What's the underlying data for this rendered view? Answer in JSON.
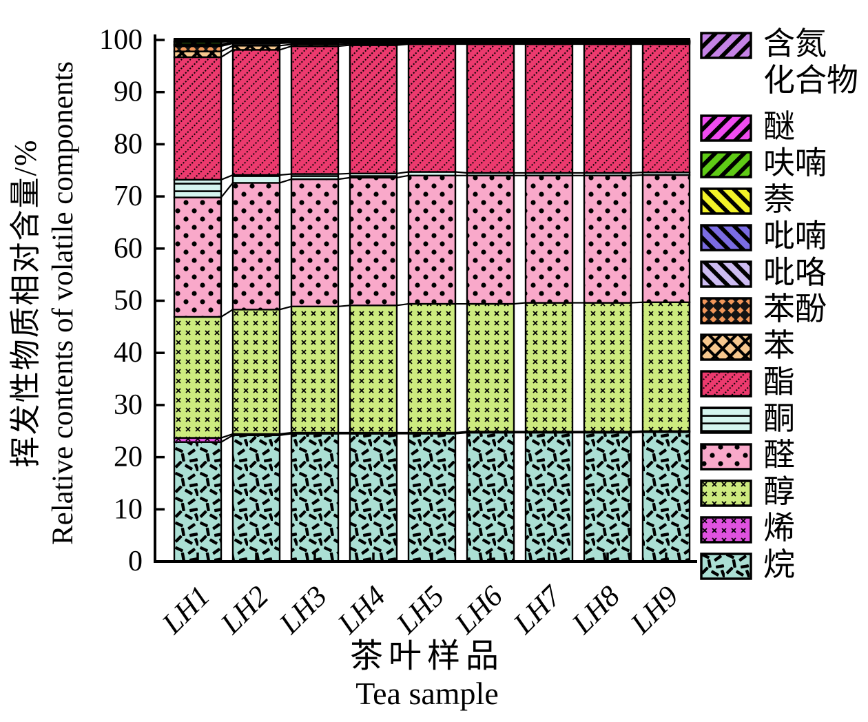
{
  "chart_data": {
    "type": "bar",
    "stacked": true,
    "title": "",
    "xlabel_zh": "茶叶样品",
    "xlabel_en": "Tea sample",
    "ylabel_zh": "挥发性物质相对含量/%",
    "ylabel_en": "Relative contents of volatile components",
    "ylim": [
      0,
      100
    ],
    "yticks": [
      0,
      10,
      20,
      30,
      40,
      50,
      60,
      70,
      80,
      90,
      100
    ],
    "grid": false,
    "legend_position": "right-outside",
    "categories": [
      "LH1",
      "LH2",
      "LH3",
      "LH4",
      "LH5",
      "LH6",
      "LH7",
      "LH8",
      "LH9"
    ],
    "series": [
      {
        "id": "alkane",
        "label": "烷",
        "color": "#abdfd4",
        "pattern": "random-dashes",
        "values": [
          22.9,
          24.2,
          24.5,
          24.5,
          24.5,
          24.7,
          24.7,
          24.7,
          24.8
        ]
      },
      {
        "id": "alkene",
        "label": "烯",
        "color": "#e052e0",
        "pattern": "tiny-x-grid",
        "values": [
          0.8,
          0.25,
          0.2,
          0.2,
          0.2,
          0.2,
          0.2,
          0.2,
          0.2
        ]
      },
      {
        "id": "alcohol",
        "label": "醇",
        "color": "#cdeb7f",
        "pattern": "tiny-x-grid",
        "values": [
          23.2,
          23.85,
          24.2,
          24.4,
          24.7,
          24.5,
          24.7,
          24.7,
          24.7
        ]
      },
      {
        "id": "aldehyde",
        "label": "醛",
        "color": "#f9a9ca",
        "pattern": "polka-dots",
        "values": [
          22.9,
          24.3,
          24.4,
          24.5,
          24.6,
          24.6,
          24.4,
          24.4,
          24.4
        ]
      },
      {
        "id": "ketone",
        "label": "酮",
        "color": "#d5f5ef",
        "pattern": "horizontal-lines",
        "values": [
          3.4,
          1.5,
          1.0,
          0.8,
          0.7,
          0.5,
          0.5,
          0.5,
          0.5
        ]
      },
      {
        "id": "ester",
        "label": "酯",
        "color": "#ec3a6e",
        "pattern": "dotted-diagonal",
        "values": [
          23.5,
          24.0,
          24.5,
          24.6,
          24.5,
          24.7,
          24.7,
          24.7,
          24.6
        ]
      },
      {
        "id": "benzene",
        "label": "苯",
        "color": "#f6c78e",
        "pattern": "diamond-lattice",
        "values": [
          1.1,
          0.8,
          0.35,
          0.25,
          0.2,
          0.18,
          0.18,
          0.18,
          0.18
        ]
      },
      {
        "id": "phenol",
        "label": "苯酚",
        "color": "#f2975a",
        "pattern": "orange-diamonds-on-black",
        "values": [
          1.0,
          0.45,
          0.3,
          0.2,
          0.15,
          0.15,
          0.15,
          0.15,
          0.15
        ]
      },
      {
        "id": "pyrrole",
        "label": "吡咯",
        "color": "#cdbcf2",
        "pattern": "back-diagonal-stripes",
        "values": [
          0.2,
          0.1,
          0.1,
          0.1,
          0.08,
          0.07,
          0.07,
          0.07,
          0.07
        ]
      },
      {
        "id": "pyran",
        "label": "吡喃",
        "color": "#7b6ce3",
        "pattern": "back-diagonal-stripes",
        "values": [
          0.1,
          0.05,
          0.05,
          0.05,
          0.04,
          0.04,
          0.04,
          0.04,
          0.04
        ]
      },
      {
        "id": "naphthalene",
        "label": "萘",
        "color": "#f2f228",
        "pattern": "back-diagonal-stripes",
        "values": [
          0.1,
          0.05,
          0.05,
          0.05,
          0.04,
          0.04,
          0.04,
          0.04,
          0.04
        ]
      },
      {
        "id": "furan",
        "label": "呋喃",
        "color": "#5fca16",
        "pattern": "forward-diagonal-stripes",
        "values": [
          0.4,
          0.2,
          0.15,
          0.15,
          0.12,
          0.12,
          0.12,
          0.12,
          0.12
        ]
      },
      {
        "id": "ether",
        "label": "醚",
        "color": "#f04cf0",
        "pattern": "forward-diagonal-stripes",
        "values": [
          0.1,
          0.05,
          0.05,
          0.05,
          0.04,
          0.04,
          0.04,
          0.04,
          0.04
        ]
      },
      {
        "id": "nitrogen",
        "label": "含氮化合物",
        "legend_label": "含氮\n化合物",
        "color": "#c583e6",
        "pattern": "forward-diagonal-stripes",
        "values": [
          0.3,
          0.2,
          0.15,
          0.15,
          0.13,
          0.16,
          0.16,
          0.16,
          0.16
        ]
      }
    ]
  }
}
